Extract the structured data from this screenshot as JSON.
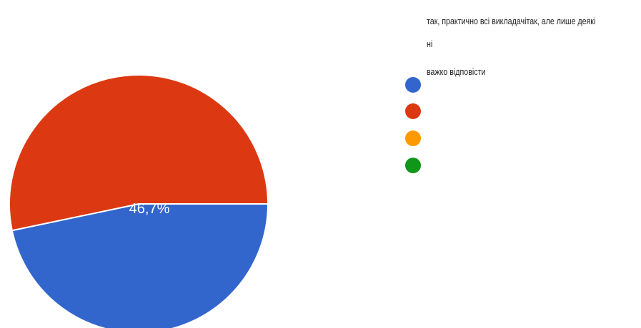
{
  "chart_data": {
    "type": "pie",
    "slices": [
      {
        "label": "так, практично всі викладачі",
        "value": 46.7,
        "color": "#3366cc"
      },
      {
        "label": "так, але лише деякі",
        "value": 53.3,
        "color": "#dc3912"
      },
      {
        "label": "ні",
        "value": 0,
        "color": "#ff9900"
      },
      {
        "label": "важко відповісти",
        "value": 0,
        "color": "#109618"
      }
    ],
    "data_labels": [
      "46,7%"
    ]
  },
  "legend": {
    "lines": [
      "так, практично всі викладачітак,  але лише деякі",
      "ні",
      "важко відповісти"
    ]
  }
}
